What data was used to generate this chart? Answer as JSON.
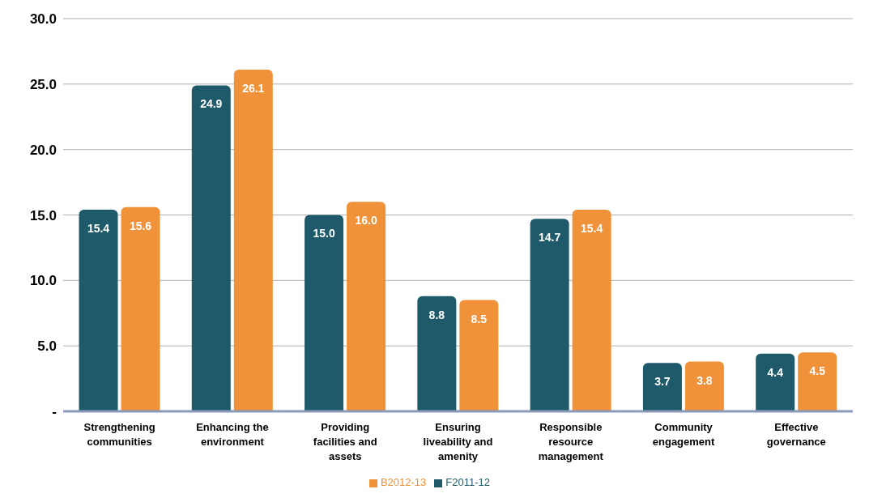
{
  "chart_data": {
    "type": "bar",
    "categories": [
      "Strengthening communities",
      "Enhancing the environment",
      "Providing facilities and assets",
      "Ensuring liveability and amenity",
      "Responsible resource management",
      "Community engagement",
      "Effective governance"
    ],
    "series": [
      {
        "name": "F2011-12",
        "color": "#1f5a6a",
        "values": [
          15.4,
          24.9,
          15.0,
          8.8,
          14.7,
          3.7,
          4.4
        ],
        "value_labels": [
          "15.4",
          "24.9",
          "15.0",
          "8.8",
          "14.7",
          "3.7",
          "4.4"
        ]
      },
      {
        "name": "B2012-13",
        "color": "#f0923a",
        "values": [
          15.6,
          26.1,
          16.0,
          8.5,
          15.4,
          3.8,
          4.5
        ],
        "value_labels": [
          "15.6",
          "26.1",
          "16.0",
          "8.5",
          "15.4",
          "3.8",
          "4.5"
        ]
      }
    ],
    "ylim": [
      0,
      30
    ],
    "yticks": [
      {
        "value": 0,
        "label": "-"
      },
      {
        "value": 5,
        "label": "5.0"
      },
      {
        "value": 10,
        "label": "10.0"
      },
      {
        "value": 15,
        "label": "15.0"
      },
      {
        "value": 20,
        "label": "20.0"
      },
      {
        "value": 25,
        "label": "25.0"
      },
      {
        "value": 30,
        "label": "30.0"
      }
    ],
    "grid": "y",
    "legend": "bottom"
  }
}
